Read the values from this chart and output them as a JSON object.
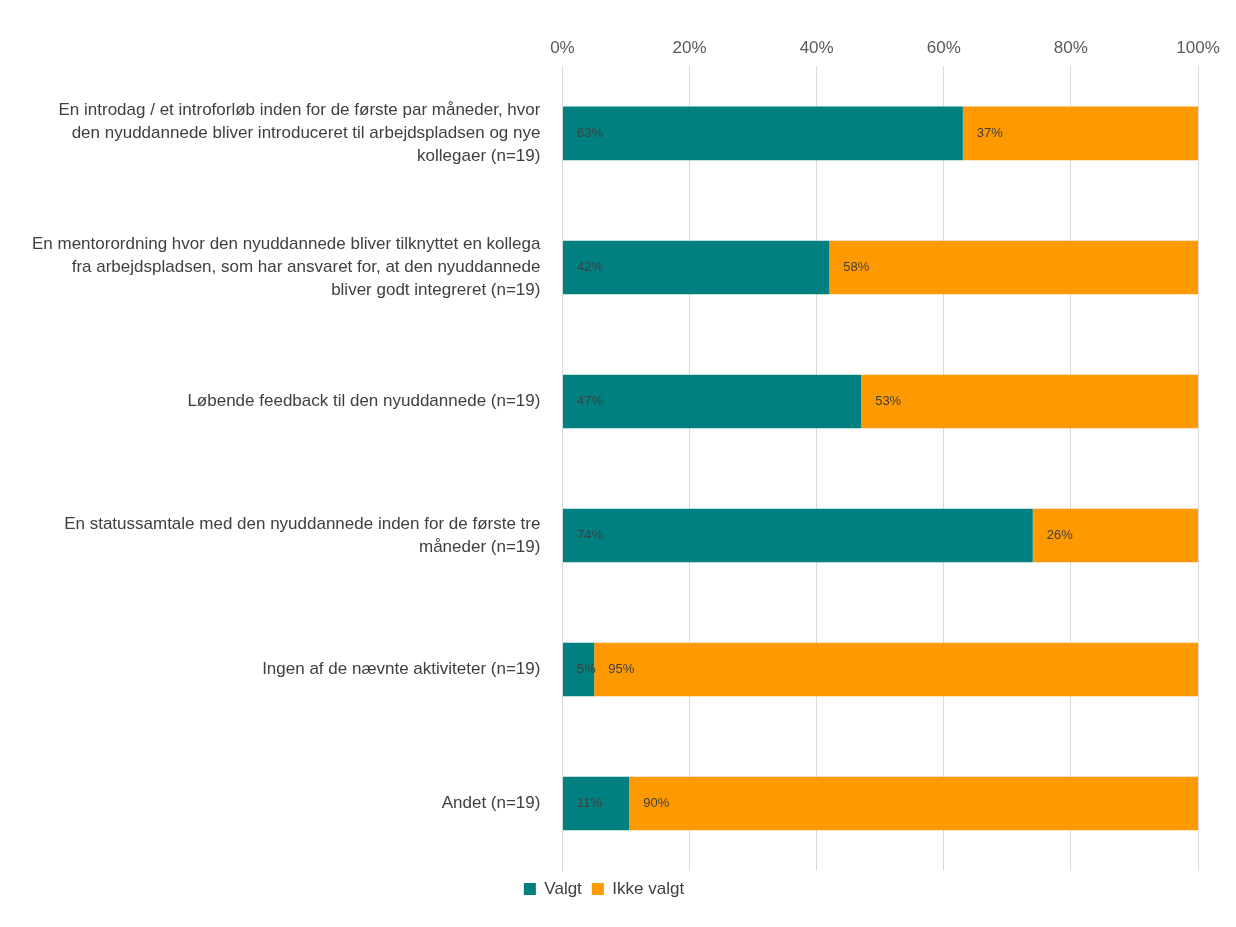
{
  "chart_data": {
    "type": "bar",
    "orientation": "horizontal",
    "stacked": true,
    "categories": [
      "En introdag / et introforløb inden for de første par måneder, hvor den nyuddannede bliver introduceret til arbejdspladsen og nye kollegaer (n=19)",
      "En mentorordning hvor den nyuddannede bliver tilknyttet en kollega fra arbejdspladsen, som har ansvaret for, at den nyuddannede bliver godt integreret (n=19)",
      "Løbende feedback til den nyuddannede (n=19)",
      "En statussamtale med den nyuddannede inden for de første tre måneder (n=19)",
      "Ingen af de nævnte aktiviteter (n=19)",
      "Andet (n=19)"
    ],
    "series": [
      {
        "name": "Valgt",
        "color": "#008080",
        "values": [
          63,
          42,
          47,
          74,
          5,
          10.5
        ],
        "value_labels": [
          "63%",
          "42%",
          "47%",
          "74%",
          "5%",
          "11%"
        ]
      },
      {
        "name": "Ikke valgt",
        "color": "#ff9900",
        "values": [
          37,
          58,
          53,
          26,
          95,
          89.5
        ],
        "value_labels": [
          "37%",
          "58%",
          "53%",
          "26%",
          "95%",
          "90%"
        ]
      }
    ],
    "xlim": [
      0,
      100
    ],
    "xticks": [
      {
        "value": 0,
        "label": "0%"
      },
      {
        "value": 20,
        "label": "20%"
      },
      {
        "value": 40,
        "label": "40%"
      },
      {
        "value": 60,
        "label": "60%"
      },
      {
        "value": 80,
        "label": "80%"
      },
      {
        "value": 100,
        "label": "100%"
      }
    ],
    "grid": "x",
    "legend": "bottom"
  }
}
